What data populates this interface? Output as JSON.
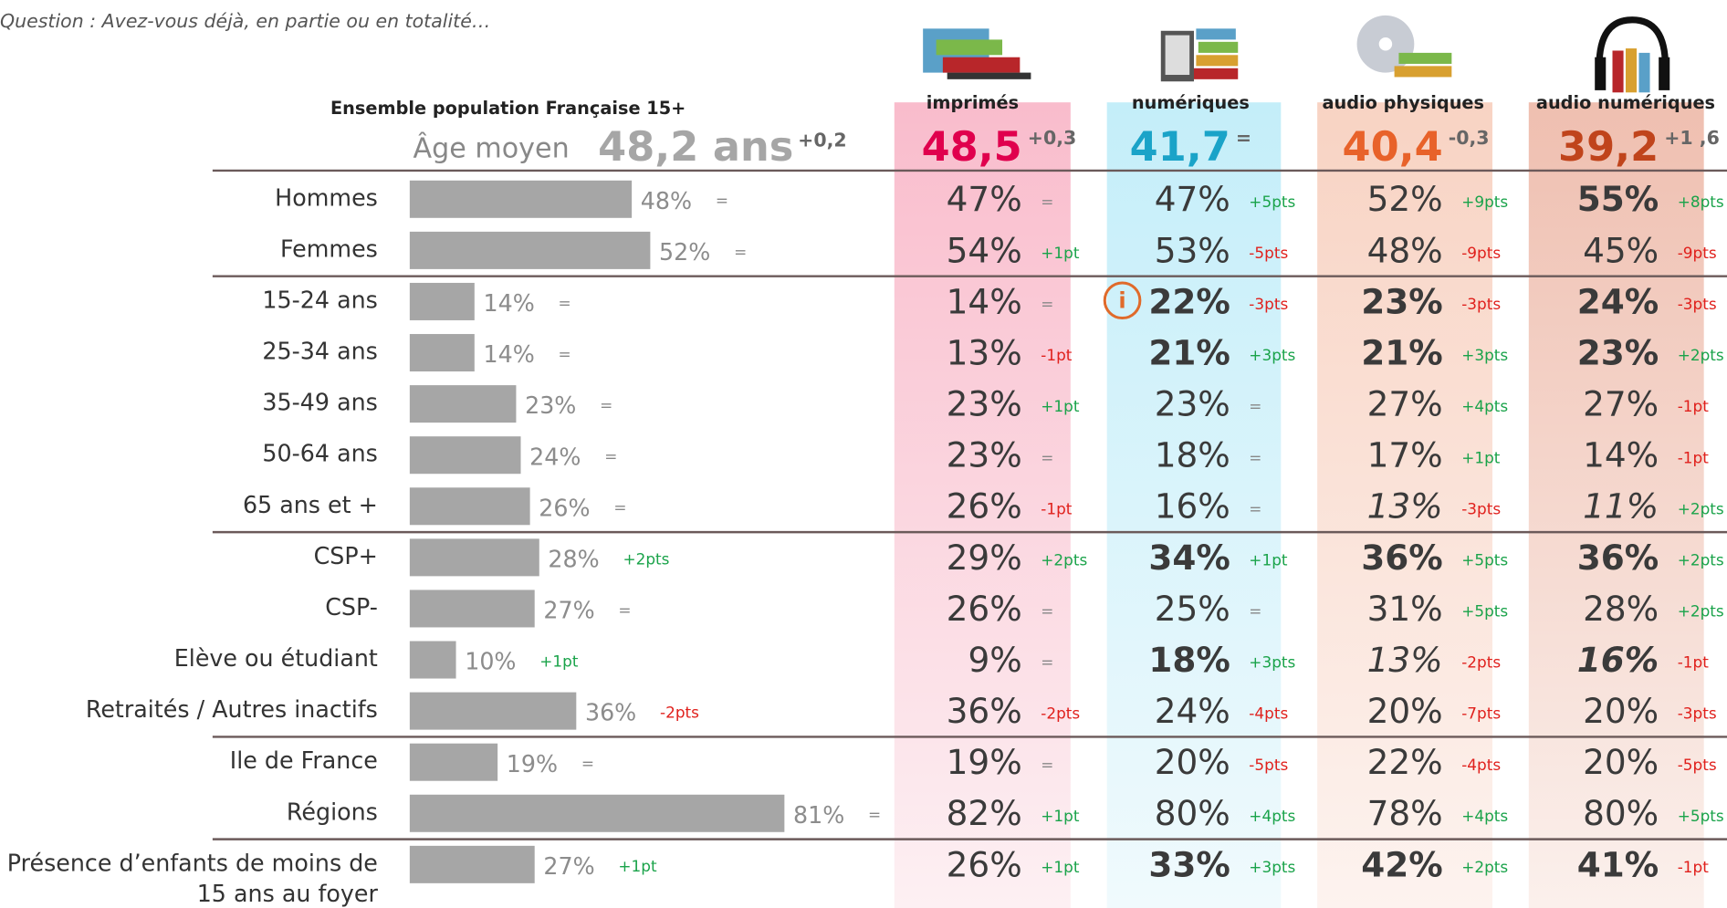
{
  "question": "Question : Avez-vous déjà, en partie ou en totalité…",
  "population_title": "Ensemble population Française 15+",
  "age": {
    "label": "Âge moyen",
    "value": "48,2 ans",
    "delta": "+0,2"
  },
  "columns": [
    {
      "name": "imprimés",
      "age": "48,5",
      "delta": "+0,3",
      "color": "#e0004d"
    },
    {
      "name": "numériques",
      "age": "41,7",
      "delta": "=",
      "color": "#1aa3c8"
    },
    {
      "name": "audio physiques",
      "age": "40,4",
      "delta": "-0,3",
      "color": "#e8622a"
    },
    {
      "name": "audio numériques",
      "age": "39,2",
      "delta": "+1 ,6",
      "color": "#c0441c"
    }
  ],
  "groups": [
    {
      "rows": [
        {
          "label": [
            "Hommes"
          ],
          "pop": 48,
          "pop_label": "48%",
          "pop_delta": "=",
          "cells": [
            {
              "value": "47%",
              "delta": "="
            },
            {
              "value": "47%",
              "delta": "+5pts"
            },
            {
              "value": "52%",
              "delta": "+9pts"
            },
            {
              "value": "55%",
              "delta": "+8pts",
              "style": "b"
            }
          ]
        },
        {
          "label": [
            "Femmes"
          ],
          "pop": 52,
          "pop_label": "52%",
          "pop_delta": "=",
          "cells": [
            {
              "value": "54%",
              "delta": "+1pt"
            },
            {
              "value": "53%",
              "delta": "-5pts"
            },
            {
              "value": "48%",
              "delta": "-9pts"
            },
            {
              "value": "45%",
              "delta": "-9pts"
            }
          ]
        }
      ]
    },
    {
      "rows": [
        {
          "label": [
            "15-24 ans"
          ],
          "pop": 14,
          "pop_label": "14%",
          "pop_delta": "=",
          "cells": [
            {
              "value": "14%",
              "delta": "="
            },
            {
              "value": "22%",
              "delta": "-3pts",
              "style": "b"
            },
            {
              "value": "23%",
              "delta": "-3pts",
              "style": "b"
            },
            {
              "value": "24%",
              "delta": "-3pts",
              "style": "b"
            }
          ]
        },
        {
          "label": [
            "25-34 ans"
          ],
          "pop": 14,
          "pop_label": "14%",
          "pop_delta": "=",
          "cells": [
            {
              "value": "13%",
              "delta": "-1pt"
            },
            {
              "value": "21%",
              "delta": "+3pts",
              "style": "b"
            },
            {
              "value": "21%",
              "delta": "+3pts",
              "style": "b"
            },
            {
              "value": "23%",
              "delta": "+2pts",
              "style": "b"
            }
          ]
        },
        {
          "label": [
            "35-49 ans"
          ],
          "pop": 23,
          "pop_label": "23%",
          "pop_delta": "=",
          "cells": [
            {
              "value": "23%",
              "delta": "+1pt"
            },
            {
              "value": "23%",
              "delta": "="
            },
            {
              "value": "27%",
              "delta": "+4pts"
            },
            {
              "value": "27%",
              "delta": "-1pt"
            }
          ]
        },
        {
          "label": [
            "50-64 ans"
          ],
          "pop": 24,
          "pop_label": "24%",
          "pop_delta": "=",
          "cells": [
            {
              "value": "23%",
              "delta": "="
            },
            {
              "value": "18%",
              "delta": "="
            },
            {
              "value": "17%",
              "delta": "+1pt"
            },
            {
              "value": "14%",
              "delta": "-1pt"
            }
          ]
        },
        {
          "label": [
            "65 ans et +"
          ],
          "pop": 26,
          "pop_label": "26%",
          "pop_delta": "=",
          "cells": [
            {
              "value": "26%",
              "delta": "-1pt"
            },
            {
              "value": "16%",
              "delta": "="
            },
            {
              "value": "13%",
              "delta": "-3pts",
              "style": "i"
            },
            {
              "value": "11%",
              "delta": "+2pts",
              "style": "i"
            }
          ]
        }
      ]
    },
    {
      "rows": [
        {
          "label": [
            "CSP+"
          ],
          "pop": 28,
          "pop_label": "28%",
          "pop_delta": "+2pts",
          "cells": [
            {
              "value": "29%",
              "delta": "+2pts"
            },
            {
              "value": "34%",
              "delta": "+1pt",
              "style": "b"
            },
            {
              "value": "36%",
              "delta": "+5pts",
              "style": "b"
            },
            {
              "value": "36%",
              "delta": "+2pts",
              "style": "b"
            }
          ]
        },
        {
          "label": [
            "CSP-"
          ],
          "pop": 27,
          "pop_label": "27%",
          "pop_delta": "=",
          "cells": [
            {
              "value": "26%",
              "delta": "="
            },
            {
              "value": "25%",
              "delta": "="
            },
            {
              "value": "31%",
              "delta": "+5pts"
            },
            {
              "value": "28%",
              "delta": "+2pts"
            }
          ]
        },
        {
          "label": [
            "Elève ou étudiant"
          ],
          "pop": 10,
          "pop_label": "10%",
          "pop_delta": "+1pt",
          "cells": [
            {
              "value": "9%",
              "delta": "="
            },
            {
              "value": "18%",
              "delta": "+3pts",
              "style": "b"
            },
            {
              "value": "13%",
              "delta": "-2pts",
              "style": "i"
            },
            {
              "value": "16%",
              "delta": "-1pt",
              "style": "bi"
            }
          ]
        },
        {
          "label": [
            "Retraités / Autres inactifs"
          ],
          "pop": 36,
          "pop_label": "36%",
          "pop_delta": "-2pts",
          "cells": [
            {
              "value": "36%",
              "delta": "-2pts"
            },
            {
              "value": "24%",
              "delta": "-4pts"
            },
            {
              "value": "20%",
              "delta": "-7pts"
            },
            {
              "value": "20%",
              "delta": "-3pts"
            }
          ]
        }
      ]
    },
    {
      "rows": [
        {
          "label": [
            "Ile de France"
          ],
          "pop": 19,
          "pop_label": "19%",
          "pop_delta": "=",
          "cells": [
            {
              "value": "19%",
              "delta": "="
            },
            {
              "value": "20%",
              "delta": "-5pts"
            },
            {
              "value": "22%",
              "delta": "-4pts"
            },
            {
              "value": "20%",
              "delta": "-5pts"
            }
          ]
        },
        {
          "label": [
            "Régions"
          ],
          "pop": 81,
          "pop_label": "81%",
          "pop_delta": "=",
          "cells": [
            {
              "value": "82%",
              "delta": "+1pt"
            },
            {
              "value": "80%",
              "delta": "+4pts"
            },
            {
              "value": "78%",
              "delta": "+4pts"
            },
            {
              "value": "80%",
              "delta": "+5pts"
            }
          ]
        }
      ]
    },
    {
      "rows": [
        {
          "label": [
            "Présence d’enfants de moins de",
            "15 ans au foyer"
          ],
          "pop": 27,
          "pop_label": "27%",
          "pop_delta": "+1pt",
          "cells": [
            {
              "value": "26%",
              "delta": "+1pt"
            },
            {
              "value": "33%",
              "delta": "+3pts",
              "style": "b"
            },
            {
              "value": "42%",
              "delta": "+2pts",
              "style": "b"
            },
            {
              "value": "41%",
              "delta": "-1pt",
              "style": "b"
            }
          ]
        }
      ]
    }
  ]
}
